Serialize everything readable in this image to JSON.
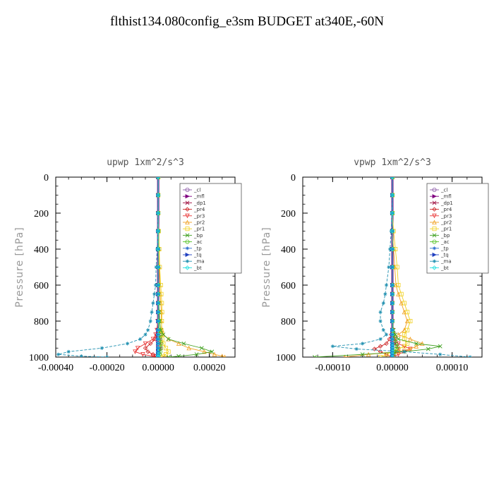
{
  "title": "flthist134.080config_e3sm  BUDGET at340E,-60N",
  "chart_data": [
    {
      "type": "line",
      "title": "upwp   1xm^2/s^3",
      "ylabel": "Pressure [hPa]",
      "xlim": [
        -0.0004,
        0.0003
      ],
      "ylim": [
        1000,
        0
      ],
      "xticks": [
        -0.0004,
        -0.0002,
        0.0,
        0.0002
      ],
      "xtick_labels": [
        "-0.00040",
        "-0.00020",
        "0.00000",
        "0.00020"
      ],
      "yticks": [
        0,
        200,
        400,
        600,
        800,
        1000
      ],
      "ytick_labels": [
        "0",
        "200",
        "400",
        "600",
        "800",
        "1000"
      ],
      "legend_position": "top-right",
      "pressure": [
        0,
        100,
        200,
        300,
        400,
        500,
        600,
        650,
        700,
        750,
        800,
        850,
        875,
        900,
        925,
        950,
        970,
        985,
        995,
        1000
      ],
      "series": [
        {
          "name": "_cl",
          "color": "#8c5aa8",
          "marker": "circle",
          "values": [
            0,
            0,
            0,
            0,
            0,
            0,
            0,
            0,
            0,
            0,
            0,
            0,
            0,
            0,
            0,
            0,
            0,
            0,
            0,
            0
          ]
        },
        {
          "name": "_mfl",
          "color": "#800080",
          "marker": "triangle-right",
          "values": [
            0,
            0,
            0,
            0,
            0,
            0,
            0,
            0,
            0,
            0,
            0,
            0,
            0,
            0,
            0,
            0,
            0,
            0,
            0,
            0
          ]
        },
        {
          "name": "_dp1",
          "color": "#a01040",
          "marker": "x",
          "values": [
            0,
            0,
            0,
            0,
            0,
            0,
            0,
            0,
            0,
            0,
            2e-06,
            3e-06,
            5e-06,
            8e-06,
            1e-05,
            1e-05,
            5e-06,
            0,
            0,
            0
          ]
        },
        {
          "name": "_pr4",
          "color": "#cc2020",
          "marker": "diamond",
          "values": [
            0,
            0,
            0,
            0,
            0,
            0,
            0,
            0,
            0,
            0,
            0,
            0,
            -5e-06,
            -1e-05,
            -3e-05,
            -5e-05,
            -4e-05,
            -2e-05,
            -1e-05,
            0
          ]
        },
        {
          "name": "_pr3",
          "color": "#e83030",
          "marker": "triangle-down",
          "values": [
            0,
            0,
            0,
            0,
            0,
            0,
            0,
            0,
            0,
            0,
            -2e-06,
            -5e-06,
            -1e-05,
            -2e-05,
            -5e-05,
            -8e-05,
            -9e-05,
            -6e-05,
            -2e-05,
            0
          ]
        },
        {
          "name": "_pr2",
          "color": "#f0a020",
          "marker": "triangle-up",
          "values": [
            0,
            0,
            0,
            0,
            2e-06,
            4e-06,
            6e-06,
            8e-06,
            1e-05,
            1.2e-05,
            1.2e-05,
            1.5e-05,
            2e-05,
            4e-05,
            8e-05,
            0.00012,
            0.00018,
            0.00022,
            0.00025,
            0.00026
          ]
        },
        {
          "name": "_pr1",
          "color": "#f0d020",
          "marker": "square",
          "values": [
            0,
            0,
            0,
            2e-06,
            4e-06,
            6e-06,
            1e-05,
            1.2e-05,
            1.4e-05,
            1.5e-05,
            1.4e-05,
            1.2e-05,
            1.2e-05,
            1.5e-05,
            2e-05,
            3e-05,
            4e-05,
            3e-05,
            2e-05,
            1e-05
          ]
        },
        {
          "name": "_bp",
          "color": "#40a020",
          "marker": "x",
          "values": [
            0,
            0,
            0,
            0,
            0,
            0,
            0,
            0,
            2e-06,
            4e-06,
            6e-06,
            1e-05,
            2e-05,
            4e-05,
            0.0001,
            0.00017,
            0.00021,
            0.00015,
            8e-05,
            4e-05
          ]
        },
        {
          "name": "_ac",
          "color": "#50c020",
          "marker": "circle",
          "values": [
            0,
            0,
            0,
            0,
            0,
            0,
            0,
            0,
            0,
            0,
            2e-06,
            4e-06,
            6e-06,
            8e-06,
            1e-05,
            1e-05,
            8e-06,
            5e-06,
            0,
            0
          ]
        },
        {
          "name": "_tp",
          "color": "#3070d0",
          "marker": "star",
          "values": [
            0,
            0,
            0,
            0,
            0,
            0,
            0,
            0,
            0,
            0,
            0,
            0,
            0,
            0,
            0,
            0,
            0,
            0,
            0,
            0
          ]
        },
        {
          "name": "_tq",
          "color": "#2040c0",
          "marker": "triangle-right",
          "values": [
            0,
            0,
            0,
            0,
            0,
            0,
            0,
            0,
            0,
            0,
            0,
            0,
            0,
            0,
            0,
            0,
            0,
            0,
            0,
            0
          ]
        },
        {
          "name": "_ma",
          "color": "#2090b0",
          "marker": "star",
          "values": [
            0,
            0,
            -1e-06,
            -2e-06,
            -4e-06,
            -8e-06,
            -1e-05,
            -1.5e-05,
            -2e-05,
            -2.5e-05,
            -3e-05,
            -4e-05,
            -5e-05,
            -7e-05,
            -0.00012,
            -0.00022,
            -0.00035,
            -0.00039,
            -0.0003,
            -0.0002
          ]
        },
        {
          "name": "_bt",
          "color": "#20e0e0",
          "marker": "diamond",
          "values": [
            0,
            0,
            0,
            0,
            0,
            0,
            0,
            0,
            0,
            0,
            0,
            0,
            0,
            0,
            0,
            0,
            0,
            0,
            0,
            0
          ]
        }
      ]
    },
    {
      "type": "line",
      "title": "vpwp   1xm^2/s^3",
      "ylabel": "Pressure [hPa]",
      "xlim": [
        -0.00015,
        0.00015
      ],
      "ylim": [
        1000,
        0
      ],
      "xticks": [
        -0.0001,
        0.0,
        0.0001
      ],
      "xtick_labels": [
        "-0.00010",
        "0.00000",
        "0.00010"
      ],
      "yticks": [
        0,
        200,
        400,
        600,
        800,
        1000
      ],
      "ytick_labels": [
        "0",
        "200",
        "400",
        "600",
        "800",
        "1000"
      ],
      "legend_position": "top-right",
      "pressure": [
        0,
        100,
        200,
        300,
        400,
        500,
        600,
        650,
        700,
        750,
        800,
        850,
        875,
        900,
        925,
        940,
        955,
        970,
        985,
        1000
      ],
      "series": [
        {
          "name": "_cl",
          "color": "#8c5aa8",
          "marker": "circle",
          "values": [
            0,
            0,
            0,
            0,
            0,
            0,
            0,
            0,
            0,
            0,
            0,
            0,
            0,
            0,
            0,
            0,
            0,
            0,
            0,
            0
          ]
        },
        {
          "name": "_mfl",
          "color": "#800080",
          "marker": "triangle-right",
          "values": [
            0,
            0,
            0,
            0,
            0,
            0,
            0,
            0,
            0,
            0,
            0,
            0,
            0,
            0,
            0,
            0,
            0,
            0,
            0,
            0
          ]
        },
        {
          "name": "_dp1",
          "color": "#a01040",
          "marker": "x",
          "values": [
            0,
            0,
            0,
            0,
            0,
            0,
            0,
            0,
            0,
            0,
            0,
            1e-06,
            2e-06,
            3e-06,
            5e-06,
            8e-06,
            1e-05,
            6e-06,
            3e-06,
            0
          ]
        },
        {
          "name": "_pr4",
          "color": "#cc2020",
          "marker": "diamond",
          "values": [
            0,
            0,
            0,
            0,
            0,
            0,
            0,
            0,
            0,
            0,
            0,
            0,
            -2e-06,
            -5e-06,
            -1e-05,
            -2e-05,
            -3e-05,
            -2e-05,
            -1e-05,
            0
          ]
        },
        {
          "name": "_pr3",
          "color": "#e83030",
          "marker": "triangle-down",
          "values": [
            0,
            0,
            0,
            0,
            0,
            0,
            0,
            0,
            0,
            0,
            0,
            0,
            2e-06,
            5e-06,
            1e-05,
            2e-05,
            3e-05,
            2e-05,
            1e-05,
            0
          ]
        },
        {
          "name": "_pr2",
          "color": "#f0a020",
          "marker": "triangle-up",
          "values": [
            0,
            0,
            0,
            0,
            2e-06,
            4e-06,
            6e-06,
            1e-05,
            1.5e-05,
            2e-05,
            2.5e-05,
            2e-05,
            1e-05,
            3e-05,
            5e-05,
            4e-05,
            3e-05,
            1e-05,
            -4e-05,
            -8e-05
          ]
        },
        {
          "name": "_pr1",
          "color": "#f0d020",
          "marker": "square",
          "values": [
            0,
            0,
            0,
            2e-06,
            5e-06,
            8e-06,
            1e-05,
            1.5e-05,
            2e-05,
            2.5e-05,
            3e-05,
            2.5e-05,
            2e-05,
            2e-05,
            2.5e-05,
            2e-05,
            1e-05,
            0,
            -1e-05,
            -2e-05
          ]
        },
        {
          "name": "_bp",
          "color": "#40a020",
          "marker": "x",
          "values": [
            0,
            0,
            0,
            0,
            0,
            0,
            0,
            0,
            0,
            0,
            0,
            2e-06,
            5e-06,
            1e-05,
            4e-05,
            8e-05,
            6e-05,
            2e-05,
            -5e-05,
            -0.00013
          ]
        },
        {
          "name": "_ac",
          "color": "#50c020",
          "marker": "circle",
          "values": [
            0,
            0,
            0,
            0,
            0,
            0,
            0,
            0,
            0,
            0,
            0,
            0,
            2e-06,
            4e-06,
            6e-06,
            8e-06,
            6e-06,
            4e-06,
            2e-06,
            0
          ]
        },
        {
          "name": "_tp",
          "color": "#3070d0",
          "marker": "star",
          "values": [
            0,
            0,
            0,
            0,
            0,
            0,
            0,
            0,
            0,
            0,
            0,
            0,
            0,
            0,
            0,
            0,
            0,
            0,
            0,
            0
          ]
        },
        {
          "name": "_tq",
          "color": "#2040c0",
          "marker": "triangle-right",
          "values": [
            0,
            0,
            0,
            0,
            0,
            0,
            0,
            0,
            0,
            0,
            0,
            0,
            0,
            0,
            0,
            0,
            0,
            0,
            0,
            0
          ]
        },
        {
          "name": "_ma",
          "color": "#2090b0",
          "marker": "star",
          "values": [
            0,
            0,
            -1e-06,
            -2e-06,
            -4e-06,
            -6e-06,
            -1e-05,
            -1.2e-05,
            -1.5e-05,
            -2e-05,
            -2e-05,
            -1.5e-05,
            -1e-05,
            -2e-05,
            -5e-05,
            -0.0001,
            -6e-05,
            2e-05,
            8e-05,
            0.00013
          ]
        },
        {
          "name": "_bt",
          "color": "#20e0e0",
          "marker": "diamond",
          "values": [
            0,
            0,
            0,
            0,
            0,
            0,
            0,
            0,
            0,
            0,
            0,
            0,
            0,
            0,
            0,
            0,
            0,
            0,
            0,
            0
          ]
        }
      ]
    }
  ]
}
